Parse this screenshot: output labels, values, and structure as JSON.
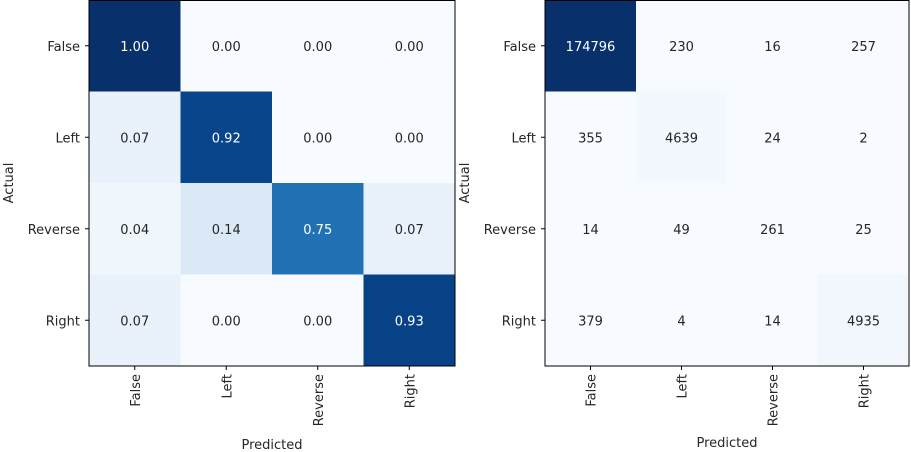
{
  "chart_data": [
    {
      "type": "heatmap",
      "xlabel": "Predicted",
      "ylabel": "Actual",
      "x_categories": [
        "False",
        "Left",
        "Reverse",
        "Right"
      ],
      "y_categories": [
        "False",
        "Left",
        "Reverse",
        "Right"
      ],
      "values": [
        [
          1.0,
          0.0,
          0.0,
          0.0
        ],
        [
          0.07,
          0.92,
          0.0,
          0.0
        ],
        [
          0.04,
          0.14,
          0.75,
          0.07
        ],
        [
          0.07,
          0.0,
          0.0,
          0.93
        ]
      ],
      "labels": [
        [
          "1.00",
          "0.00",
          "0.00",
          "0.00"
        ],
        [
          "0.07",
          "0.92",
          "0.00",
          "0.00"
        ],
        [
          "0.04",
          "0.14",
          "0.75",
          "0.07"
        ],
        [
          "0.07",
          "0.00",
          "0.00",
          "0.93"
        ]
      ],
      "colormap": "Blues",
      "color_range": [
        0,
        1
      ]
    },
    {
      "type": "heatmap",
      "xlabel": "Predicted",
      "ylabel": "Actual",
      "x_categories": [
        "False",
        "Left",
        "Reverse",
        "Right"
      ],
      "y_categories": [
        "False",
        "Left",
        "Reverse",
        "Right"
      ],
      "values": [
        [
          174796,
          230,
          16,
          257
        ],
        [
          355,
          4639,
          24,
          2
        ],
        [
          14,
          49,
          261,
          25
        ],
        [
          379,
          4,
          14,
          4935
        ]
      ],
      "labels": [
        [
          "174796",
          "230",
          "16",
          "257"
        ],
        [
          "355",
          "4639",
          "24",
          "2"
        ],
        [
          "14",
          "49",
          "261",
          "25"
        ],
        [
          "379",
          "4",
          "14",
          "4935"
        ]
      ],
      "colormap": "Blues",
      "color_range": [
        0,
        174796
      ]
    }
  ]
}
